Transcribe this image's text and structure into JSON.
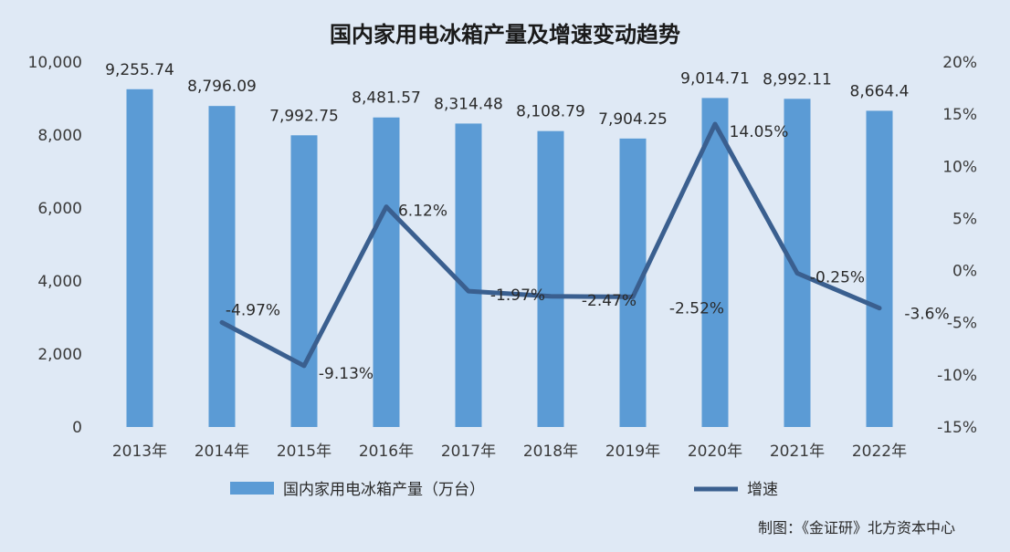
{
  "chart_data": {
    "type": "bar",
    "title": "国内家用电冰箱产量及增速变动趋势",
    "categories": [
      "2013年",
      "2014年",
      "2015年",
      "2016年",
      "2017年",
      "2018年",
      "2019年",
      "2020年",
      "2021年",
      "2022年"
    ],
    "series": [
      {
        "name": "国内家用电冰箱产量（万台）",
        "type": "bar",
        "axis": "left",
        "values": [
          9255.74,
          8796.09,
          7992.75,
          8481.57,
          8314.48,
          8108.79,
          7904.25,
          9014.71,
          8992.11,
          8664.4
        ],
        "labels": [
          "9,255.74",
          "8,796.09",
          "7,992.75",
          "8,481.57",
          "8,314.48",
          "8,108.79",
          "7,904.25",
          "9,014.71",
          "8,992.11",
          "8,664.4"
        ],
        "color": "#5b9bd5"
      },
      {
        "name": "增速",
        "type": "line",
        "axis": "right",
        "values": [
          null,
          -4.97,
          -9.13,
          6.12,
          -1.97,
          -2.47,
          -2.52,
          14.05,
          -0.25,
          -3.6
        ],
        "labels": [
          null,
          "-4.97%",
          "-9.13%",
          "6.12%",
          "-1.97%",
          "-2.47%",
          "-2.52%",
          "14.05%",
          "-0.25%",
          "-3.6%"
        ],
        "color": "#3a5f8f"
      }
    ],
    "y_left": {
      "range": [
        0,
        10000
      ],
      "ticks": [
        0,
        2000,
        4000,
        6000,
        8000,
        10000
      ],
      "tick_labels": [
        "0",
        "2,000",
        "4,000",
        "6,000",
        "8,000",
        "10,000"
      ]
    },
    "y_right": {
      "range": [
        -15,
        20
      ],
      "ticks": [
        -15,
        -10,
        -5,
        0,
        5,
        10,
        15,
        20
      ],
      "tick_labels": [
        "-15%",
        "-10%",
        "-5%",
        "0%",
        "5%",
        "10%",
        "15%",
        "20%"
      ]
    },
    "grid": false,
    "legend_position": "bottom"
  },
  "source": "制图：《金证研》北方资本中心"
}
